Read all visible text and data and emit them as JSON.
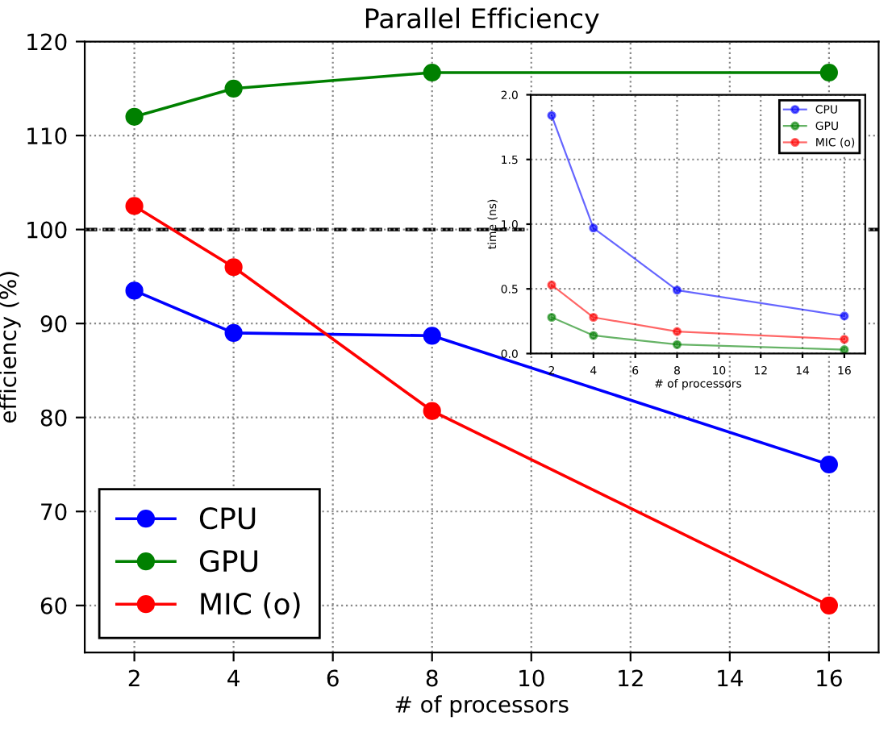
{
  "chart_data": [
    {
      "type": "line",
      "title": "Parallel Efficiency",
      "xlabel": "# of processors",
      "ylabel": "efficiency (%)",
      "x": [
        2,
        4,
        8,
        16
      ],
      "xlim": [
        1,
        17
      ],
      "xticks": [
        2,
        4,
        6,
        8,
        10,
        12,
        14,
        16
      ],
      "ylim": [
        55,
        120
      ],
      "yticks": [
        60,
        70,
        80,
        90,
        100,
        110,
        120
      ],
      "grid": true,
      "legend": "bottom left",
      "marker": "circle",
      "line_style": "solid",
      "series": [
        {
          "name": "CPU",
          "color": "#0000ff",
          "values": [
            93.5,
            89,
            88.7,
            75
          ]
        },
        {
          "name": "GPU",
          "color": "#008000",
          "values": [
            112,
            115,
            116.7,
            116.7
          ]
        },
        {
          "name": "MIC (o)",
          "color": "#ff0000",
          "values": [
            102.5,
            96,
            80.7,
            60
          ]
        }
      ],
      "ref_lines": [
        {
          "axis": "y",
          "value": 100,
          "color": "#000000",
          "line_style": "dashed"
        }
      ]
    },
    {
      "type": "line",
      "xlabel": "# of processors",
      "ylabel": "time (ns)",
      "x": [
        2,
        4,
        8,
        16
      ],
      "xlim": [
        1,
        17
      ],
      "xticks": [
        2,
        4,
        6,
        8,
        10,
        12,
        14,
        16
      ],
      "ylim": [
        0,
        2
      ],
      "yticks": [
        {
          "value": 0,
          "label": "0.0"
        },
        0.5,
        {
          "value": 1,
          "label": "1.0"
        },
        1.5,
        {
          "value": 2,
          "label": "2.0"
        }
      ],
      "grid": true,
      "legend": "top right",
      "marker": "circle",
      "line_style": "solid",
      "series": [
        {
          "name": "CPU",
          "color": "#0000ff",
          "values": [
            1.84,
            0.97,
            0.49,
            0.29
          ]
        },
        {
          "name": "GPU",
          "color": "#008000",
          "values": [
            0.28,
            0.14,
            0.07,
            0.03
          ]
        },
        {
          "name": "MIC (o)",
          "color": "#ff0000",
          "values": [
            0.53,
            0.28,
            0.17,
            0.11
          ]
        }
      ]
    }
  ]
}
